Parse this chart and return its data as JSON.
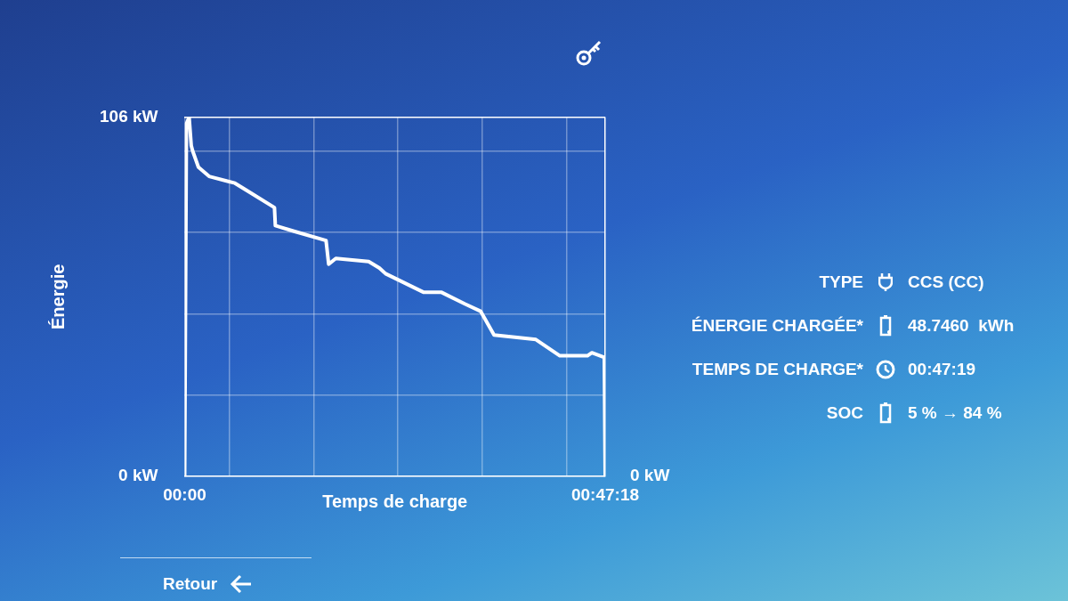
{
  "chart_data": {
    "type": "line",
    "xlabel": "Temps de charge",
    "ylabel": "Énergie",
    "x": [
      0,
      0.2,
      0.5,
      0.74,
      0.9,
      1.55,
      2.75,
      5.65,
      7.0,
      10.1,
      10.2,
      12.3,
      15.9,
      16.2,
      17.0,
      20.7,
      21.9,
      22.6,
      26.9,
      28.9,
      31.5,
      33.3,
      34.8,
      39.5,
      42.2,
      45.3,
      45.8,
      47.2,
      47.3
    ],
    "series": [
      {
        "color": "#ffffff",
        "values": [
          0,
          104,
          106,
          97.6,
          96,
          91.2,
          88.5,
          86.5,
          84.3,
          79.3,
          74,
          72.3,
          69.6,
          62.6,
          64.3,
          63.4,
          61.5,
          59.8,
          54.3,
          54.3,
          50.9,
          48.7,
          41.7,
          40.4,
          35.6,
          35.6,
          36.5,
          35.1,
          0
        ]
      }
    ],
    "xlim": [
      0,
      47.3
    ],
    "xticks": [
      {
        "value": 0,
        "label": "00:00"
      },
      {
        "value": 5,
        "label": null
      },
      {
        "value": 14.5,
        "label": null
      },
      {
        "value": 24,
        "label": null
      },
      {
        "value": 33.5,
        "label": null
      },
      {
        "value": 43,
        "label": null
      },
      {
        "value": 47.3,
        "label": "00:47:18"
      }
    ],
    "ylim": [
      0,
      106
    ],
    "yticks": [
      {
        "value": 0,
        "label": "0 kW"
      },
      {
        "value": 24,
        "label": null
      },
      {
        "value": 48,
        "label": null
      },
      {
        "value": 72,
        "label": null
      },
      {
        "value": 96,
        "label": null
      },
      {
        "value": 106,
        "label": "106 kW"
      }
    ],
    "grid": true,
    "legend": false,
    "marker": "none",
    "line_style": "solid",
    "annotations": [
      {
        "text": "0 kW",
        "x": 47.3,
        "y": 0
      },
      "TYPE",
      "CCS (CC)",
      "ÉNERGIE CHARGÉE*",
      "48.7460  kWh",
      "TEMPS DE CHARGE*",
      "00:47:19",
      "SOC",
      "5 % → 84 %",
      "Retour"
    ]
  }
}
